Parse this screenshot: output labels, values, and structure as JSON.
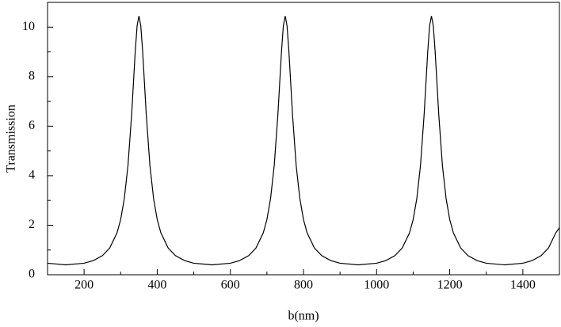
{
  "chart_data": {
    "type": "line",
    "xlabel": "b(nm)",
    "ylabel": "Transmission",
    "x": [
      100,
      150,
      200,
      225,
      250,
      270,
      290,
      300,
      310,
      320,
      330,
      335,
      340,
      345,
      350,
      355,
      360,
      365,
      370,
      380,
      390,
      400,
      410,
      430,
      450,
      475,
      500,
      550,
      600,
      625,
      650,
      670,
      690,
      700,
      710,
      720,
      730,
      735,
      740,
      745,
      750,
      755,
      760,
      765,
      770,
      780,
      790,
      800,
      810,
      830,
      850,
      875,
      900,
      950,
      1000,
      1025,
      1050,
      1070,
      1090,
      1100,
      1110,
      1120,
      1130,
      1135,
      1140,
      1145,
      1150,
      1155,
      1160,
      1165,
      1170,
      1180,
      1190,
      1200,
      1210,
      1230,
      1250,
      1275,
      1300,
      1350,
      1400,
      1425,
      1450,
      1470,
      1490,
      1500
    ],
    "values": [
      0.465,
      0.4,
      0.465,
      0.569,
      0.771,
      1.08,
      1.69,
      2.23,
      3.08,
      4.41,
      6.47,
      7.76,
      9.05,
      10.06,
      10.45,
      10.06,
      9.05,
      7.76,
      6.47,
      4.41,
      3.08,
      2.23,
      1.69,
      1.08,
      0.771,
      0.569,
      0.465,
      0.4,
      0.465,
      0.569,
      0.771,
      1.08,
      1.69,
      2.23,
      3.08,
      4.41,
      6.47,
      7.76,
      9.05,
      10.06,
      10.45,
      10.06,
      9.05,
      7.76,
      6.47,
      4.41,
      3.08,
      2.23,
      1.69,
      1.08,
      0.771,
      0.569,
      0.465,
      0.4,
      0.465,
      0.569,
      0.771,
      1.08,
      1.69,
      2.23,
      3.08,
      4.41,
      6.47,
      7.76,
      9.05,
      10.06,
      10.45,
      10.06,
      9.05,
      7.76,
      6.47,
      4.41,
      3.08,
      2.23,
      1.69,
      1.08,
      0.771,
      0.569,
      0.465,
      0.4,
      0.465,
      0.569,
      0.771,
      1.08,
      1.69,
      1.9
    ],
    "color": "#000000",
    "xlim": [
      100,
      1500
    ],
    "xticks": [
      200,
      400,
      600,
      800,
      1000,
      1200,
      1400
    ],
    "xminorticks": [
      100,
      300,
      500,
      700,
      900,
      1100,
      1300,
      1500
    ],
    "ylim": [
      0,
      11
    ],
    "yticks": [
      0,
      2,
      4,
      6,
      8,
      10
    ],
    "yminorticks": [
      1,
      3,
      5,
      7,
      9
    ]
  }
}
